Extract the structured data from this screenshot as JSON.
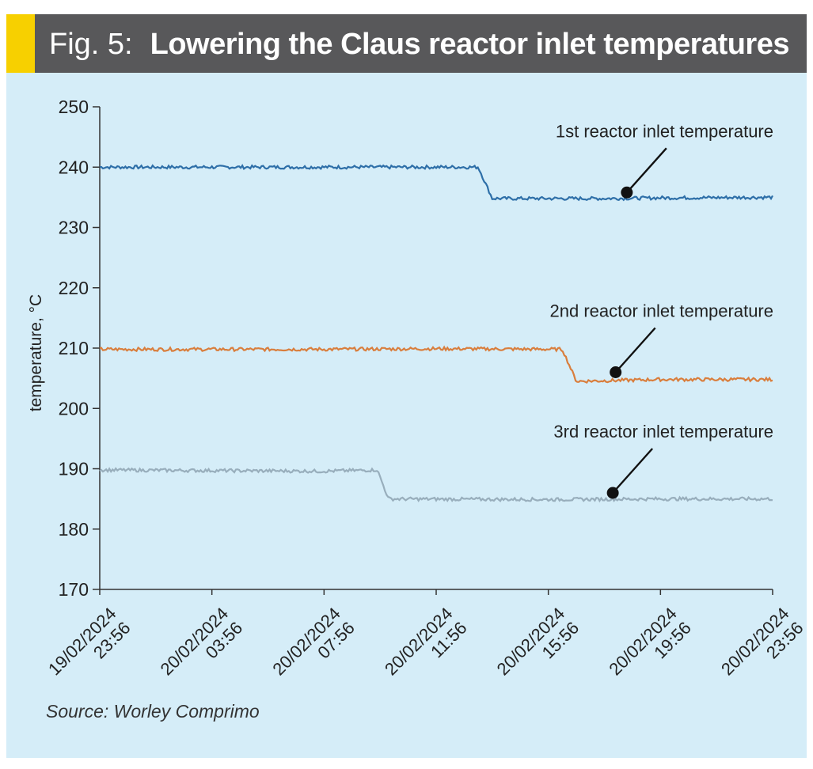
{
  "header": {
    "fig_label": "Fig. 5:",
    "title": "Lowering the Claus reactor inlet temperatures",
    "accent_color": "#f7d000",
    "bar_color": "#58585a"
  },
  "source": "Source: Worley Comprimo",
  "chart_data": {
    "type": "line",
    "title": "Lowering the Claus reactor inlet temperatures",
    "xlabel": "",
    "ylabel": "temperature, °C",
    "ylim": [
      170,
      250
    ],
    "yticks": [
      170,
      180,
      190,
      200,
      210,
      220,
      230,
      240,
      250
    ],
    "x_range_hours": [
      0,
      24
    ],
    "xticks": [
      {
        "date": "19/02/2024",
        "time": "23:56",
        "hour": 0
      },
      {
        "date": "20/02/2024",
        "time": "03:56",
        "hour": 4
      },
      {
        "date": "20/02/2024",
        "time": "07:56",
        "hour": 8
      },
      {
        "date": "20/02/2024",
        "time": "11:56",
        "hour": 12
      },
      {
        "date": "20/02/2024",
        "time": "15:56",
        "hour": 16
      },
      {
        "date": "20/02/2024",
        "time": "19:56",
        "hour": 20
      },
      {
        "date": "20/02/2024",
        "time": "23:56",
        "hour": 24
      }
    ],
    "grid": false,
    "legend": "annotations",
    "series": [
      {
        "name": "1st reactor inlet temperature",
        "color": "#2e6fa8",
        "points": [
          [
            0,
            240
          ],
          [
            8,
            240
          ],
          [
            11.5,
            240
          ],
          [
            13.5,
            240
          ],
          [
            14,
            234.8
          ],
          [
            18,
            234.8
          ],
          [
            20,
            234.9
          ],
          [
            24,
            235
          ]
        ],
        "annotation_hour": 18.8,
        "annotation_value": 235.8
      },
      {
        "name": "2nd reactor inlet temperature",
        "color": "#d97e3d",
        "points": [
          [
            0,
            209.8
          ],
          [
            8,
            209.8
          ],
          [
            12,
            209.9
          ],
          [
            16.5,
            209.8
          ],
          [
            17,
            204.5
          ],
          [
            20,
            204.8
          ],
          [
            24,
            204.8
          ]
        ],
        "annotation_hour": 18.4,
        "annotation_value": 206
      },
      {
        "name": "3rd reactor inlet temperature",
        "color": "#98aebc",
        "points": [
          [
            0,
            189.8
          ],
          [
            8,
            189.6
          ],
          [
            9.9,
            189.8
          ],
          [
            10.3,
            185
          ],
          [
            16,
            184.9
          ],
          [
            20,
            185
          ],
          [
            24,
            185
          ]
        ],
        "annotation_hour": 18.3,
        "annotation_value": 186
      }
    ]
  }
}
